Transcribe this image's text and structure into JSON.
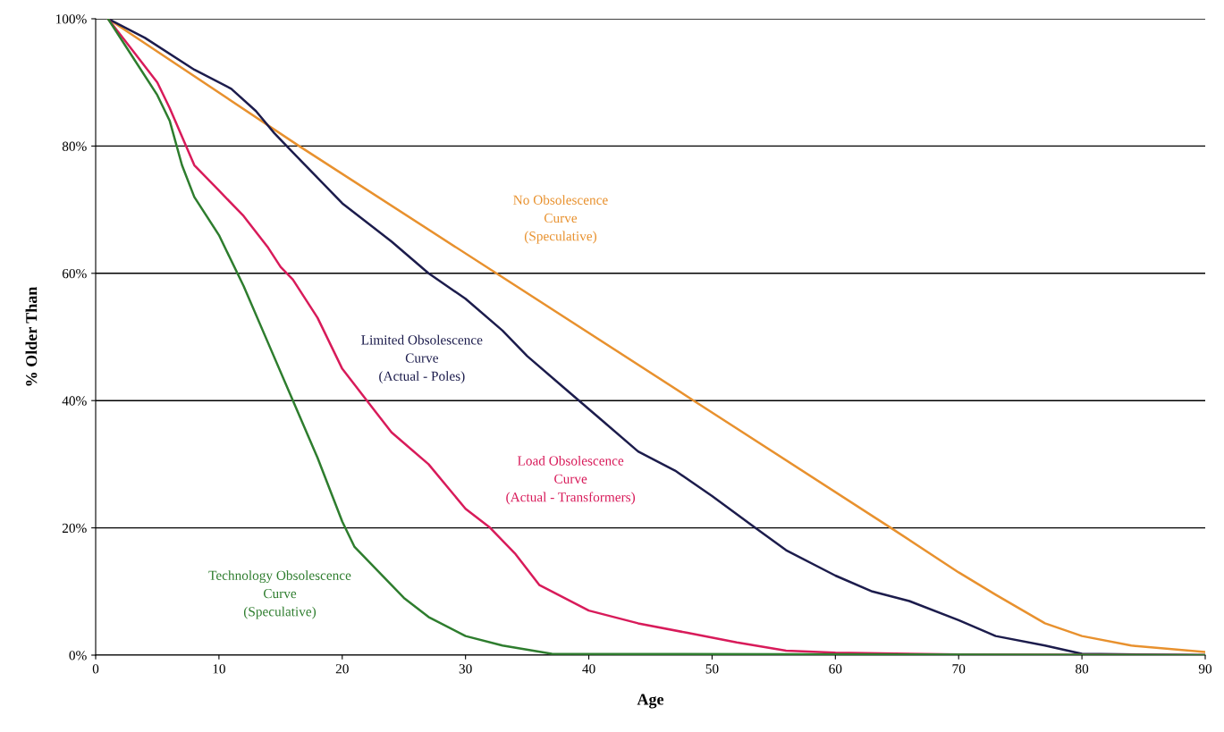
{
  "chart_data": {
    "type": "line",
    "xlabel": "Age",
    "ylabel": "% Older Than",
    "xlim": [
      0,
      90
    ],
    "ylim": [
      0,
      100
    ],
    "xticks": [
      0,
      10,
      20,
      30,
      40,
      50,
      60,
      70,
      80,
      90
    ],
    "yticks": [
      {
        "value": 0,
        "label": "0%"
      },
      {
        "value": 20,
        "label": "20%"
      },
      {
        "value": 40,
        "label": "40%"
      },
      {
        "value": 60,
        "label": "60%"
      },
      {
        "value": 80,
        "label": "80%"
      },
      {
        "value": 100,
        "label": "100%"
      }
    ],
    "grid": "y",
    "marker": "none",
    "line_style": "solid",
    "series": [
      {
        "name": "No Obsolescence\nCurve\n(Speculative)",
        "color": "#e8912e",
        "x": [
          1,
          16.5,
          32.5,
          48.5,
          64.5,
          70,
          73,
          77,
          80,
          84,
          90
        ],
        "values": [
          100,
          80,
          60,
          40,
          20,
          13,
          9.5,
          5,
          3,
          1.5,
          0.5
        ]
      },
      {
        "name": "Limited Obsolescence\nCurve\n(Actual - Poles)",
        "color": "#1c1c4c",
        "x": [
          1,
          4,
          8,
          11,
          13,
          14.5,
          16,
          20,
          24,
          27,
          30,
          33,
          35,
          38,
          41,
          44,
          47,
          50,
          53.5,
          56,
          60,
          63,
          66,
          70,
          73,
          77,
          80,
          90
        ],
        "values": [
          100,
          97,
          92,
          89,
          85.5,
          82,
          79,
          71,
          65,
          60,
          56,
          51,
          47,
          42,
          37,
          32,
          29,
          25,
          20,
          16.5,
          12.5,
          10,
          8.5,
          5.5,
          3,
          1.5,
          0.2,
          0
        ]
      },
      {
        "name": "Load Obsolescence\nCurve\n(Actual - Transformers)",
        "color": "#d81b5a",
        "x": [
          1,
          3,
          5,
          6,
          8,
          10,
          12,
          14,
          15,
          16,
          18,
          20,
          22,
          24,
          27,
          30,
          32,
          34,
          36,
          38,
          40,
          44,
          48,
          52,
          56,
          60,
          70,
          90
        ],
        "values": [
          100,
          95,
          90,
          86,
          77,
          73,
          69,
          64,
          61,
          59,
          53,
          45,
          40,
          35,
          30,
          23,
          20,
          16,
          11,
          9,
          7,
          5,
          3.5,
          2,
          0.7,
          0.4,
          0.1,
          0
        ]
      },
      {
        "name": "Technology Obsolescence\nCurve\n(Speculative)",
        "color": "#2e7d2e",
        "x": [
          1,
          3,
          5,
          6,
          7,
          8,
          10,
          12,
          14,
          16,
          18,
          20,
          21,
          23,
          25,
          27,
          30,
          33,
          37,
          90
        ],
        "values": [
          100,
          94,
          88,
          84,
          77,
          72,
          66,
          58,
          49,
          40,
          31,
          21,
          17,
          13,
          9,
          6,
          3,
          1.5,
          0.2,
          0
        ]
      }
    ]
  }
}
